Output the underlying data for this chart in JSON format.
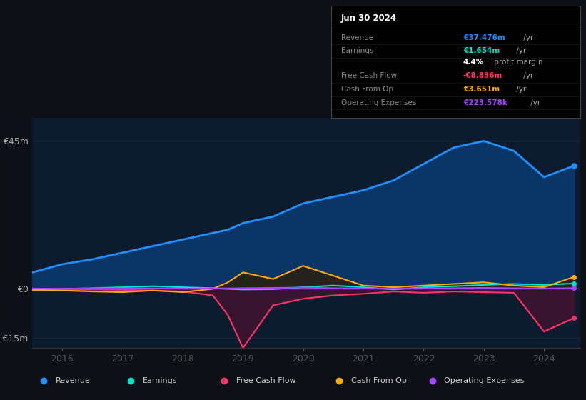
{
  "background_color": "#0d1117",
  "chart_bg_color": "#0d1b2e",
  "grid_color": "#1e2d40",
  "zero_line_color": "#ffffff",
  "ylim": [
    -18000000,
    52000000
  ],
  "yticks": [
    -15000000,
    0,
    45000000
  ],
  "ytick_labels": [
    "-€15m",
    "€0",
    "€45m"
  ],
  "xticks": [
    2016,
    2017,
    2018,
    2019,
    2020,
    2021,
    2022,
    2023,
    2024
  ],
  "years": [
    2015.5,
    2016.0,
    2016.5,
    2017.0,
    2017.5,
    2018.0,
    2018.5,
    2018.75,
    2019.0,
    2019.5,
    2020.0,
    2020.5,
    2021.0,
    2021.5,
    2022.0,
    2022.5,
    2023.0,
    2023.5,
    2024.0,
    2024.5
  ],
  "revenue": [
    5000000,
    7500000,
    9000000,
    11000000,
    13000000,
    15000000,
    17000000,
    18000000,
    20000000,
    22000000,
    26000000,
    28000000,
    30000000,
    33000000,
    38000000,
    43000000,
    45000000,
    42000000,
    34000000,
    37476000
  ],
  "earnings": [
    -200000,
    0,
    200000,
    500000,
    800000,
    500000,
    200000,
    0,
    -200000,
    -100000,
    500000,
    1000000,
    500000,
    -200000,
    500000,
    800000,
    1200000,
    1500000,
    1200000,
    1654000
  ],
  "free_cash_flow": [
    -500000,
    -300000,
    -200000,
    -300000,
    -500000,
    -800000,
    -2000000,
    -8000000,
    -18000000,
    -5000000,
    -3000000,
    -2000000,
    -1500000,
    -800000,
    -1200000,
    -800000,
    -1000000,
    -1200000,
    -13000000,
    -8836000
  ],
  "cash_from_op": [
    -300000,
    -500000,
    -800000,
    -1000000,
    -500000,
    -1000000,
    0,
    2000000,
    5000000,
    3000000,
    7000000,
    4000000,
    1000000,
    500000,
    1000000,
    1500000,
    2000000,
    1000000,
    500000,
    3651000
  ],
  "operating_expenses": [
    100000,
    50000,
    100000,
    200000,
    100000,
    50000,
    100000,
    150000,
    200000,
    300000,
    400000,
    200000,
    100000,
    50000,
    100000,
    200000,
    300000,
    200000,
    100000,
    223578
  ],
  "revenue_color": "#1e90ff",
  "revenue_fill_color": "#0a3a6e",
  "earnings_color": "#00e5cc",
  "free_cash_flow_color": "#ff3366",
  "free_cash_flow_fill_neg_color": "#5a1030",
  "cash_from_op_color": "#ffaa00",
  "cash_from_op_fill_pos_color": "#3a2800",
  "operating_expenses_color": "#aa44ff",
  "legend": [
    {
      "label": "Revenue",
      "color": "#1e90ff"
    },
    {
      "label": "Earnings",
      "color": "#00e5cc"
    },
    {
      "label": "Free Cash Flow",
      "color": "#ff3366"
    },
    {
      "label": "Cash From Op",
      "color": "#ffaa00"
    },
    {
      "label": "Operating Expenses",
      "color": "#aa44ff"
    }
  ],
  "info_box": {
    "date": "Jun 30 2024",
    "rows": [
      {
        "label": "Revenue",
        "value": "€37.476m",
        "suffix": " /yr",
        "value_color": "#1e90ff"
      },
      {
        "label": "Earnings",
        "value": "€1.654m",
        "suffix": " /yr",
        "value_color": "#00e5cc"
      },
      {
        "label": "",
        "value": "4.4%",
        "suffix": " profit margin",
        "value_color": "#ffffff"
      },
      {
        "label": "Free Cash Flow",
        "value": "-€8.836m",
        "suffix": " /yr",
        "value_color": "#ff3366"
      },
      {
        "label": "Cash From Op",
        "value": "€3.651m",
        "suffix": " /yr",
        "value_color": "#ffaa00"
      },
      {
        "label": "Operating Expenses",
        "value": "€223.578k",
        "suffix": " /yr",
        "value_color": "#aa44ff"
      }
    ]
  }
}
